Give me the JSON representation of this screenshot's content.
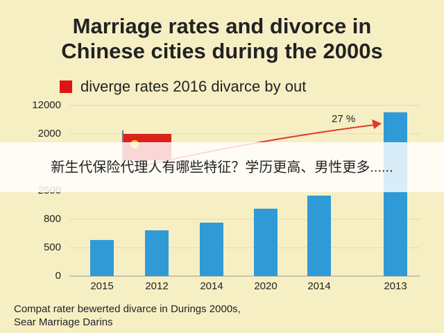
{
  "chart_data": {
    "type": "bar",
    "title": "Marriage rates and divorce in Chinese cities during the 2000s",
    "title_lines": [
      "Marriage rates and divorce in",
      "Chinese cities during the 2000s"
    ],
    "legend": "diverge rates 2016 divarce by out",
    "color": "#2f9ad6",
    "legend_color": "#e01414",
    "categories": [
      "2015",
      "2012",
      "2014",
      "2020",
      "2014",
      "2013"
    ],
    "values": [
      1.27,
      1.61,
      1.88,
      2.37,
      2.83,
      5.76
    ],
    "ylim": [
      0,
      6.3
    ],
    "yticks": [
      0,
      {
        "value": 1,
        "label": "500"
      },
      {
        "value": 2,
        "label": "800"
      },
      {
        "value": 3,
        "label": "2500"
      },
      {
        "value": 5,
        "label": "2000"
      },
      {
        "value": 6,
        "label": "12000"
      }
    ],
    "grid": true,
    "annotation": "27 %",
    "footer": [
      "Compat rater bewerted divarce in Durings 2000s,",
      "Sear Marriage Darins"
    ]
  },
  "overlay": "新生代保险代理人有哪些特征？学历更高、男性更多......"
}
